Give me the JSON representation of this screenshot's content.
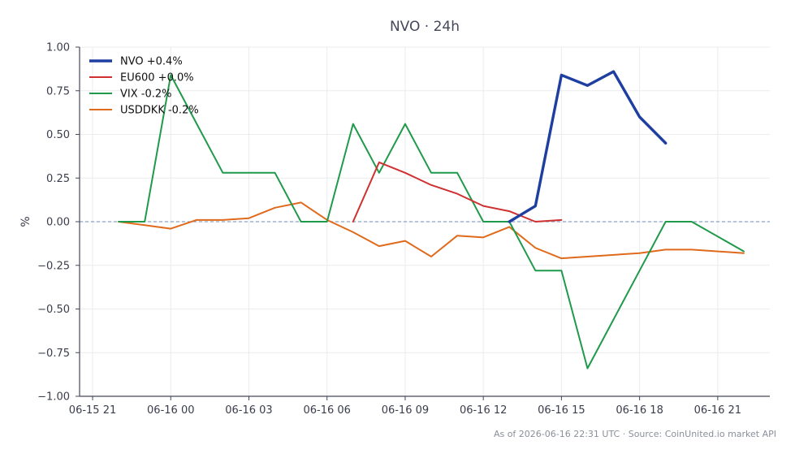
{
  "chart_data": {
    "type": "line",
    "title": "NVO · 24h",
    "xlabel": "",
    "ylabel": "%",
    "ylim": [
      -1.0,
      1.0
    ],
    "xlim": [
      "2026-06-15 20:30",
      "2026-06-16 23:00"
    ],
    "x_ticks": [
      "06-15 21",
      "06-16 00",
      "06-16 03",
      "06-16 06",
      "06-16 09",
      "06-16 12",
      "06-16 15",
      "06-16 18",
      "06-16 21"
    ],
    "y_ticks": [
      "1.00",
      "0.75",
      "0.50",
      "0.25",
      "0.00",
      "−0.25",
      "−0.50",
      "−0.75",
      "−1.00"
    ],
    "grid": true,
    "legend_position": "top-left",
    "zero_line": true,
    "series": [
      {
        "name": "NVO +0.4%",
        "color": "#1f3fa0",
        "width": "bold",
        "points": [
          {
            "x": "2026-06-16 13:00",
            "y": 0.0
          },
          {
            "x": "2026-06-16 14:00",
            "y": 0.09
          },
          {
            "x": "2026-06-16 15:00",
            "y": 0.84
          },
          {
            "x": "2026-06-16 16:00",
            "y": 0.78
          },
          {
            "x": "2026-06-16 17:00",
            "y": 0.86
          },
          {
            "x": "2026-06-16 18:00",
            "y": 0.6
          },
          {
            "x": "2026-06-16 19:00",
            "y": 0.45
          }
        ]
      },
      {
        "name": "EU600 +0.0%",
        "color": "#d03030",
        "width": "normal",
        "points": [
          {
            "x": "2026-06-16 07:00",
            "y": 0.0
          },
          {
            "x": "2026-06-16 08:00",
            "y": 0.34
          },
          {
            "x": "2026-06-16 09:00",
            "y": 0.28
          },
          {
            "x": "2026-06-16 10:00",
            "y": 0.21
          },
          {
            "x": "2026-06-16 11:00",
            "y": 0.16
          },
          {
            "x": "2026-06-16 12:00",
            "y": 0.09
          },
          {
            "x": "2026-06-16 13:00",
            "y": 0.06
          },
          {
            "x": "2026-06-16 14:00",
            "y": 0.0
          },
          {
            "x": "2026-06-16 15:00",
            "y": 0.01
          }
        ]
      },
      {
        "name": "VIX -0.2%",
        "color": "#1f9a4a",
        "width": "normal",
        "points": [
          {
            "x": "2026-06-15 22:00",
            "y": 0.0
          },
          {
            "x": "2026-06-15 23:00",
            "y": 0.0
          },
          {
            "x": "2026-06-16 00:00",
            "y": 0.84
          },
          {
            "x": "2026-06-16 01:00",
            "y": 0.56
          },
          {
            "x": "2026-06-16 02:00",
            "y": 0.28
          },
          {
            "x": "2026-06-16 03:00",
            "y": 0.28
          },
          {
            "x": "2026-06-16 04:00",
            "y": 0.28
          },
          {
            "x": "2026-06-16 05:00",
            "y": 0.0
          },
          {
            "x": "2026-06-16 06:00",
            "y": 0.0
          },
          {
            "x": "2026-06-16 07:00",
            "y": 0.56
          },
          {
            "x": "2026-06-16 08:00",
            "y": 0.28
          },
          {
            "x": "2026-06-16 09:00",
            "y": 0.56
          },
          {
            "x": "2026-06-16 10:00",
            "y": 0.28
          },
          {
            "x": "2026-06-16 11:00",
            "y": 0.28
          },
          {
            "x": "2026-06-16 12:00",
            "y": 0.0
          },
          {
            "x": "2026-06-16 13:00",
            "y": 0.0
          },
          {
            "x": "2026-06-16 14:00",
            "y": -0.28
          },
          {
            "x": "2026-06-16 15:00",
            "y": -0.28
          },
          {
            "x": "2026-06-16 16:00",
            "y": -0.84
          },
          {
            "x": "2026-06-16 17:00",
            "y": -0.56
          },
          {
            "x": "2026-06-16 18:00",
            "y": -0.28
          },
          {
            "x": "2026-06-16 19:00",
            "y": 0.0
          },
          {
            "x": "2026-06-16 20:00",
            "y": 0.0
          },
          {
            "x": "2026-06-16 22:00",
            "y": -0.17
          }
        ]
      },
      {
        "name": "USDDKK -0.2%",
        "color": "#e06a1c",
        "width": "normal",
        "points": [
          {
            "x": "2026-06-15 22:00",
            "y": 0.0
          },
          {
            "x": "2026-06-15 23:00",
            "y": -0.02
          },
          {
            "x": "2026-06-16 00:00",
            "y": -0.04
          },
          {
            "x": "2026-06-16 01:00",
            "y": 0.01
          },
          {
            "x": "2026-06-16 02:00",
            "y": 0.01
          },
          {
            "x": "2026-06-16 03:00",
            "y": 0.02
          },
          {
            "x": "2026-06-16 04:00",
            "y": 0.08
          },
          {
            "x": "2026-06-16 05:00",
            "y": 0.11
          },
          {
            "x": "2026-06-16 06:00",
            "y": 0.01
          },
          {
            "x": "2026-06-16 07:00",
            "y": -0.06
          },
          {
            "x": "2026-06-16 08:00",
            "y": -0.14
          },
          {
            "x": "2026-06-16 09:00",
            "y": -0.11
          },
          {
            "x": "2026-06-16 10:00",
            "y": -0.2
          },
          {
            "x": "2026-06-16 11:00",
            "y": -0.08
          },
          {
            "x": "2026-06-16 12:00",
            "y": -0.09
          },
          {
            "x": "2026-06-16 13:00",
            "y": -0.03
          },
          {
            "x": "2026-06-16 14:00",
            "y": -0.15
          },
          {
            "x": "2026-06-16 15:00",
            "y": -0.21
          },
          {
            "x": "2026-06-16 16:00",
            "y": -0.2
          },
          {
            "x": "2026-06-16 17:00",
            "y": -0.19
          },
          {
            "x": "2026-06-16 18:00",
            "y": -0.18
          },
          {
            "x": "2026-06-16 19:00",
            "y": -0.16
          },
          {
            "x": "2026-06-16 20:00",
            "y": -0.16
          },
          {
            "x": "2026-06-16 22:00",
            "y": -0.18
          }
        ]
      }
    ]
  },
  "footer": {
    "text": "As of 2026-06-16 22:31 UTC · Source: CoinUnited.io market API"
  },
  "colors": {
    "axis": "#44475a",
    "grid": "#ececef",
    "zero_line": "#8aa0c8",
    "text": "#3a3d4a"
  }
}
